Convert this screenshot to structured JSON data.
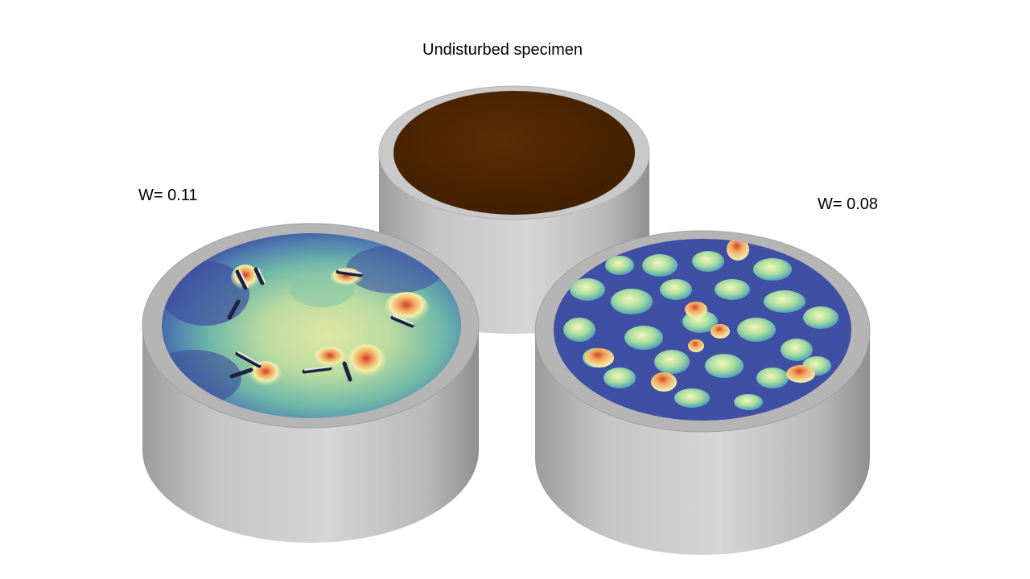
{
  "labels": {
    "center": "Undisturbed specimen",
    "left": "W= 0.11",
    "right": "W= 0.08"
  },
  "specimens": [
    {
      "id": "undisturbed",
      "surface": "smooth-brown",
      "surface_color": "#4a2300"
    },
    {
      "id": "w-0.11",
      "surface": "heightmap",
      "feature": "desiccation cracks"
    },
    {
      "id": "w-0.08",
      "surface": "heightmap",
      "feature": "aggregates"
    }
  ],
  "colors": {
    "background": "#ffffff",
    "cylinder_wall": "#c8c8c8",
    "cylinder_rim": "#a9a9a9",
    "heightmap_low": "#3f4fa3",
    "heightmap_mid": "#6fc2a6",
    "heightmap_high": "#e8f0a0",
    "heightmap_peak": "#d84a2e"
  }
}
